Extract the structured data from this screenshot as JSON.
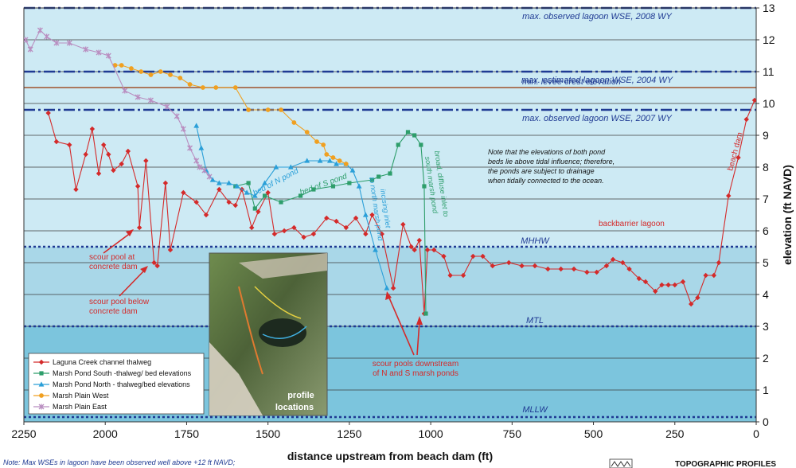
{
  "chart_data": {
    "type": "line",
    "xlabel": "distance upstream from beach dam (ft)",
    "ylabel": "elevation (ft NAVD)",
    "xlim": [
      2250,
      0
    ],
    "ylim": [
      0,
      13
    ],
    "x_ticks": [
      "2250",
      "2000",
      "1750",
      "1500",
      "1250",
      "1000",
      "750",
      "500",
      "250",
      "0"
    ],
    "y_ticks": [
      "0",
      "1",
      "2",
      "3",
      "4",
      "5",
      "6",
      "7",
      "8",
      "9",
      "10",
      "11",
      "12",
      "13"
    ],
    "grid": true,
    "legend_position": "bottom-left",
    "colors": {
      "upper_band": "#cdeaf4",
      "middle_band": "#a9d7e8",
      "lower_band": "#7cc5dd",
      "reference_line": "#1f3a93",
      "levee_line": "#a0522d"
    },
    "series": [
      {
        "name": "Laguna Creek channel thalweg",
        "color": "#d42a2a",
        "marker": "diamond",
        "points": [
          [
            2175,
            9.7
          ],
          [
            2150,
            8.8
          ],
          [
            2110,
            8.7
          ],
          [
            2090,
            7.3
          ],
          [
            2060,
            8.4
          ],
          [
            2040,
            9.2
          ],
          [
            2020,
            7.8
          ],
          [
            2005,
            8.7
          ],
          [
            1990,
            8.4
          ],
          [
            1975,
            7.9
          ],
          [
            1950,
            8.1
          ],
          [
            1930,
            8.5
          ],
          [
            1900,
            7.4
          ],
          [
            1895,
            6.1
          ],
          [
            1875,
            8.2
          ],
          [
            1850,
            5.0
          ],
          [
            1840,
            4.9
          ],
          [
            1815,
            7.5
          ],
          [
            1800,
            5.4
          ],
          [
            1760,
            7.2
          ],
          [
            1720,
            6.9
          ],
          [
            1690,
            6.5
          ],
          [
            1650,
            7.3
          ],
          [
            1620,
            6.9
          ],
          [
            1600,
            6.8
          ],
          [
            1580,
            7.3
          ],
          [
            1550,
            6.1
          ],
          [
            1530,
            6.6
          ],
          [
            1500,
            7.2
          ],
          [
            1480,
            5.9
          ],
          [
            1450,
            6.0
          ],
          [
            1420,
            6.1
          ],
          [
            1390,
            5.8
          ],
          [
            1360,
            5.9
          ],
          [
            1320,
            6.4
          ],
          [
            1290,
            6.3
          ],
          [
            1260,
            6.1
          ],
          [
            1230,
            6.4
          ],
          [
            1200,
            5.9
          ],
          [
            1180,
            6.5
          ],
          [
            1150,
            5.9
          ],
          [
            1115,
            4.2
          ],
          [
            1085,
            6.2
          ],
          [
            1060,
            5.5
          ],
          [
            1050,
            5.4
          ],
          [
            1035,
            5.7
          ],
          [
            1020,
            3.4
          ],
          [
            1010,
            5.4
          ],
          [
            990,
            5.4
          ],
          [
            960,
            5.2
          ],
          [
            940,
            4.6
          ],
          [
            900,
            4.6
          ],
          [
            870,
            5.2
          ],
          [
            840,
            5.2
          ],
          [
            810,
            4.9
          ],
          [
            760,
            5.0
          ],
          [
            720,
            4.9
          ],
          [
            680,
            4.9
          ],
          [
            640,
            4.8
          ],
          [
            600,
            4.8
          ],
          [
            560,
            4.8
          ],
          [
            520,
            4.7
          ],
          [
            490,
            4.7
          ],
          [
            460,
            4.9
          ],
          [
            440,
            5.1
          ],
          [
            410,
            5.0
          ],
          [
            390,
            4.8
          ],
          [
            360,
            4.5
          ],
          [
            340,
            4.4
          ],
          [
            310,
            4.1
          ],
          [
            290,
            4.3
          ],
          [
            270,
            4.3
          ],
          [
            250,
            4.3
          ],
          [
            225,
            4.4
          ],
          [
            200,
            3.7
          ],
          [
            180,
            3.9
          ],
          [
            155,
            4.6
          ],
          [
            130,
            4.6
          ],
          [
            115,
            5.0
          ],
          [
            85,
            7.1
          ],
          [
            55,
            8.3
          ],
          [
            30,
            9.5
          ],
          [
            5,
            10.1
          ]
        ]
      },
      {
        "name": "Marsh Pond South -thalweg/ bed elevations",
        "color": "#2e9e6b",
        "marker": "square",
        "points": [
          [
            1600,
            7.4
          ],
          [
            1560,
            7.5
          ],
          [
            1540,
            6.7
          ],
          [
            1510,
            7.1
          ],
          [
            1460,
            6.9
          ],
          [
            1400,
            7.1
          ],
          [
            1360,
            7.3
          ],
          [
            1300,
            7.4
          ],
          [
            1250,
            7.5
          ],
          [
            1180,
            7.6
          ],
          [
            1160,
            7.7
          ],
          [
            1125,
            7.8
          ],
          [
            1100,
            8.7
          ],
          [
            1070,
            9.1
          ],
          [
            1050,
            9.0
          ],
          [
            1030,
            8.7
          ],
          [
            1020,
            7.4
          ],
          [
            1015,
            3.4
          ]
        ]
      },
      {
        "name": "Marsh Pond North - thalweg/bed elevations",
        "color": "#2a9fd8",
        "marker": "triangle",
        "points": [
          [
            1720,
            9.3
          ],
          [
            1705,
            8.6
          ],
          [
            1690,
            7.9
          ],
          [
            1670,
            7.6
          ],
          [
            1650,
            7.5
          ],
          [
            1620,
            7.5
          ],
          [
            1595,
            7.4
          ],
          [
            1565,
            7.2
          ],
          [
            1540,
            7.1
          ],
          [
            1510,
            7.5
          ],
          [
            1475,
            8.0
          ],
          [
            1430,
            8.0
          ],
          [
            1380,
            8.2
          ],
          [
            1340,
            8.2
          ],
          [
            1310,
            8.2
          ],
          [
            1290,
            8.1
          ],
          [
            1260,
            8.1
          ],
          [
            1240,
            7.9
          ],
          [
            1220,
            7.4
          ],
          [
            1200,
            6.5
          ],
          [
            1170,
            5.4
          ],
          [
            1135,
            4.2
          ]
        ]
      },
      {
        "name": "Marsh Plain West",
        "color": "#f0a020",
        "marker": "circle",
        "points": [
          [
            1970,
            11.2
          ],
          [
            1950,
            11.2
          ],
          [
            1920,
            11.1
          ],
          [
            1890,
            11.0
          ],
          [
            1860,
            10.9
          ],
          [
            1830,
            11.0
          ],
          [
            1800,
            10.9
          ],
          [
            1770,
            10.8
          ],
          [
            1740,
            10.6
          ],
          [
            1700,
            10.5
          ],
          [
            1660,
            10.5
          ],
          [
            1600,
            10.5
          ],
          [
            1560,
            9.8
          ],
          [
            1500,
            9.8
          ],
          [
            1460,
            9.8
          ],
          [
            1420,
            9.4
          ],
          [
            1380,
            9.1
          ],
          [
            1350,
            8.8
          ],
          [
            1330,
            8.7
          ],
          [
            1320,
            8.4
          ],
          [
            1300,
            8.3
          ],
          [
            1280,
            8.2
          ],
          [
            1260,
            8.1
          ]
        ]
      },
      {
        "name": "Marsh Plain East",
        "color": "#b98ec0",
        "marker": "cross",
        "points": [
          [
            2245,
            12.0
          ],
          [
            2230,
            11.7
          ],
          [
            2200,
            12.3
          ],
          [
            2180,
            12.1
          ],
          [
            2150,
            11.9
          ],
          [
            2110,
            11.9
          ],
          [
            2060,
            11.7
          ],
          [
            2020,
            11.6
          ],
          [
            1990,
            11.5
          ],
          [
            1940,
            10.4
          ],
          [
            1900,
            10.2
          ],
          [
            1860,
            10.1
          ],
          [
            1810,
            9.9
          ],
          [
            1780,
            9.6
          ],
          [
            1760,
            9.2
          ],
          [
            1740,
            8.6
          ],
          [
            1720,
            8.2
          ],
          [
            1710,
            8.0
          ],
          [
            1695,
            7.9
          ],
          [
            1680,
            7.7
          ]
        ]
      }
    ],
    "reference_lines": [
      {
        "label": "max. observed lagoon WSE, 2008 WY",
        "y": 13.0,
        "style": "dashdot"
      },
      {
        "label": "max. estimated lagoon WSE, 2004 WY",
        "y": 11.0,
        "style": "dashdot"
      },
      {
        "label": "min. levee crest elevation",
        "y": 10.5,
        "style": "solid-brown"
      },
      {
        "label": "max. observed lagoon WSE, 2007 WY",
        "y": 9.8,
        "style": "dashdot"
      },
      {
        "label": "MHHW",
        "y": 5.5,
        "style": "dotted"
      },
      {
        "label": "MTL",
        "y": 3.0,
        "style": "dotted"
      },
      {
        "label": "MLLW",
        "y": 0.15,
        "style": "dotted"
      }
    ]
  },
  "annotations": {
    "note_lines": [
      "Note that the elevations of both pond",
      "beds lie above tidal influence; therefore,",
      "the ponds are subject to drainage",
      "when tidally connected to the ocean."
    ],
    "bed_n_pond": "bed of N pond",
    "bed_s_pond": "bed of S pond",
    "incising_inlet": "incising inlet",
    "to_north_marsh_pond": "to north marsh pond",
    "broad_diffuse_inlet": "broad, diffuse inlet to",
    "south_marsh_pond": "south marsh pond",
    "beach_dam": "beach dam",
    "backbarrier_lagoon": "backbarrier lagoon",
    "scour_pool_at": "scour pool at",
    "concrete_dam": "concrete dam",
    "scour_pool_below": "scour pool below",
    "concrete_dam_2": "concrete dam",
    "scour_pools_downstream": "scour pools downstream",
    "of_n_s_ponds": "of N and S marsh ponds",
    "profile": "profile",
    "locations": "locations"
  },
  "footer": {
    "note": "Note: Max WSEs in lagoon have been observed well above +12 ft NAVD;",
    "title": "TOPOGRAPHIC PROFILES"
  }
}
